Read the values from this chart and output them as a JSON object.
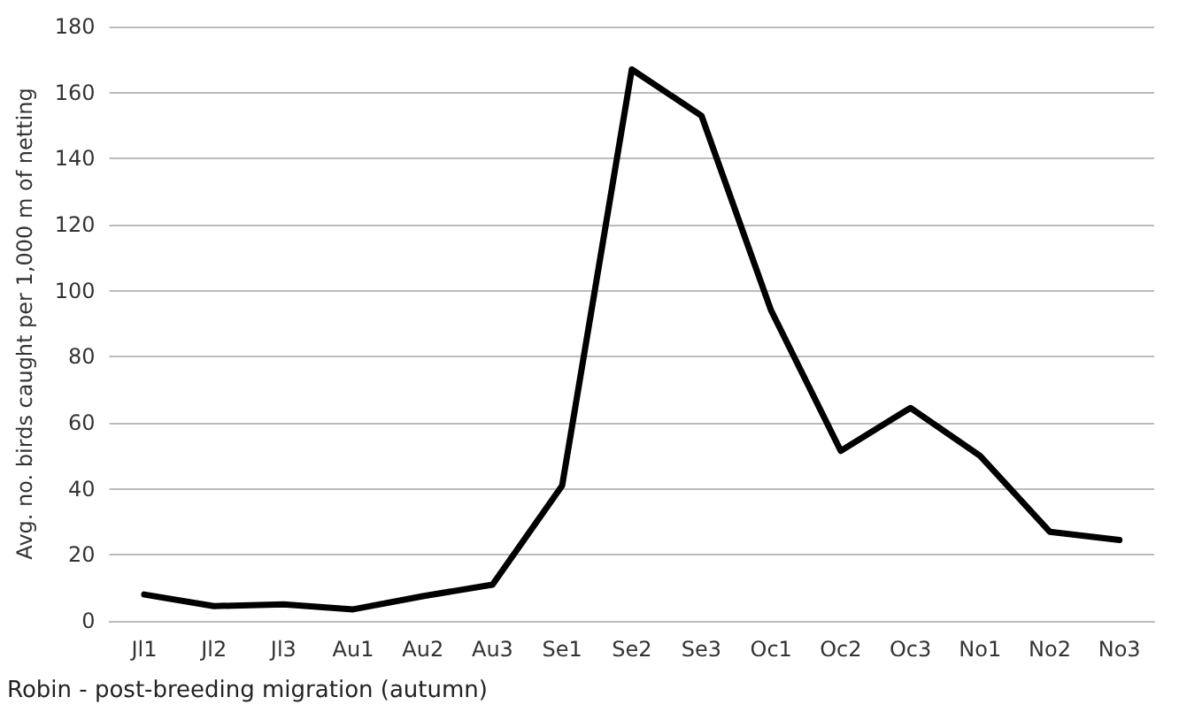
{
  "chart_data": {
    "type": "line",
    "ylabel": "Avg. no. birds caught per 1,000 m of netting",
    "categories": [
      "Jl1",
      "Jl2",
      "Jl3",
      "Au1",
      "Au2",
      "Au3",
      "Se1",
      "Se2",
      "Se3",
      "Oc1",
      "Oc2",
      "Oc3",
      "No1",
      "No2",
      "No3"
    ],
    "series": [
      {
        "color": "#000000",
        "values": [
          8,
          4.5,
          5,
          3.5,
          7.5,
          11,
          41,
          167,
          153,
          94,
          51.5,
          64.5,
          50,
          27,
          24.5
        ]
      }
    ],
    "ylim": [
      0,
      180
    ],
    "yticks": [
      0,
      20,
      40,
      60,
      80,
      100,
      120,
      140,
      160,
      180
    ],
    "grid": "y",
    "marker": "none",
    "line_style": "solid",
    "annotations": [
      "Robin - post-breeding migration (autumn)"
    ]
  }
}
